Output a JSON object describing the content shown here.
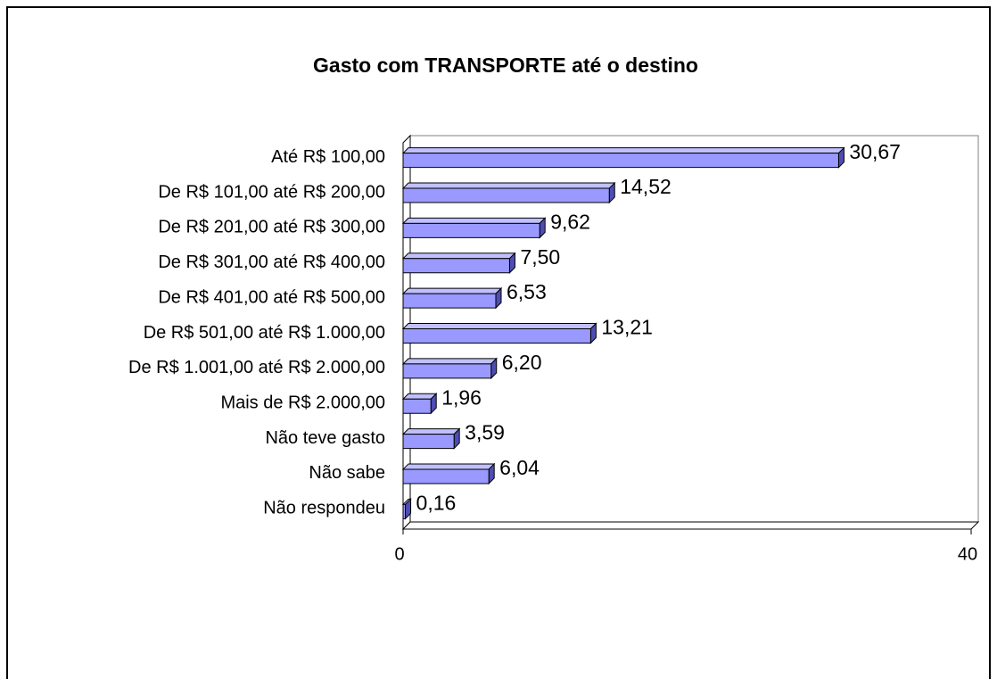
{
  "chart_data": {
    "type": "bar",
    "orientation": "horizontal",
    "title": "Gasto com TRANSPORTE até o destino",
    "categories": [
      "Até R$ 100,00",
      "De R$ 101,00 até R$ 200,00",
      "De R$ 201,00 até R$ 300,00",
      "De R$ 301,00 até R$ 400,00",
      "De R$ 401,00 até R$ 500,00",
      "De R$ 501,00 até R$ 1.000,00",
      "De R$ 1.001,00 até R$ 2.000,00",
      "Mais de R$ 2.000,00",
      "Não teve gasto",
      "Não sabe",
      "Não respondeu"
    ],
    "values": [
      30.67,
      14.52,
      9.62,
      7.5,
      6.53,
      13.21,
      6.2,
      1.96,
      3.59,
      6.04,
      0.16
    ],
    "value_labels": [
      "30,67",
      "14,52",
      "9,62",
      "7,50",
      "6,53",
      "13,21",
      "6,20",
      "1,96",
      "3,59",
      "6,04",
      "0,16"
    ],
    "color": "#9999ff",
    "xlim": [
      0,
      40
    ],
    "xticks": [
      0,
      40
    ]
  }
}
